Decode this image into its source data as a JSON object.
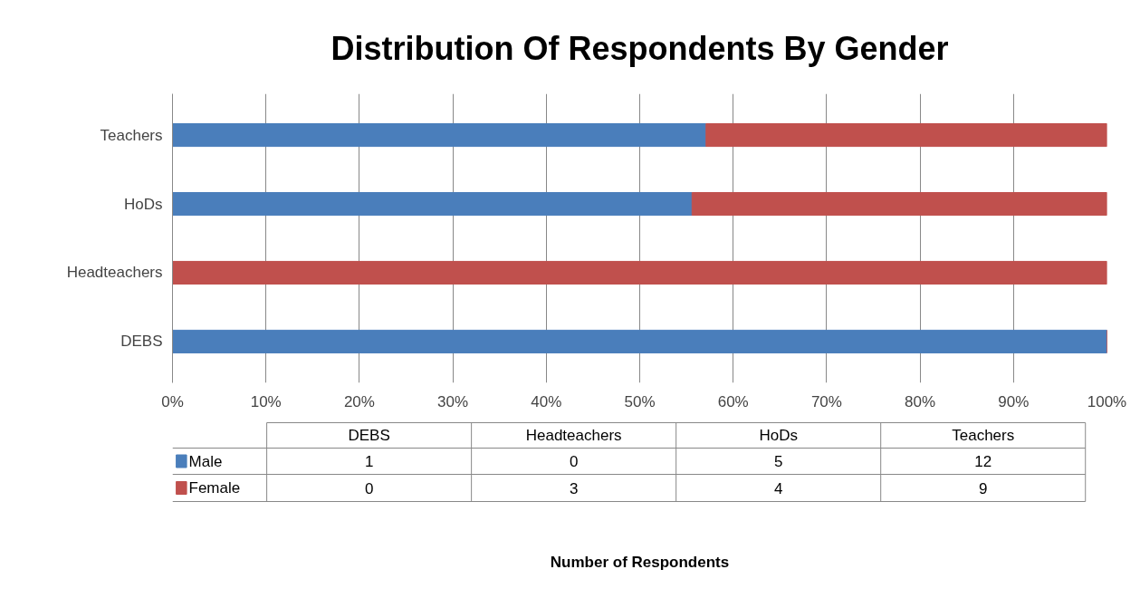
{
  "chart_data": {
    "type": "bar",
    "orientation": "horizontal",
    "stacked": true,
    "title": "Distribution Of Respondents By Gender",
    "categories": [
      "Teachers",
      "HoDs",
      "Headteachers",
      "DEBS"
    ],
    "series": [
      {
        "name": "Male",
        "color": "#4a7ebb",
        "values": [
          57.1,
          55.6,
          0,
          100
        ]
      },
      {
        "name": "Female",
        "color": "#c0504d",
        "values": [
          42.9,
          44.4,
          100,
          0
        ]
      }
    ],
    "annotations": [
      "Number of Respondents",
      "1",
      "0",
      "5",
      "12",
      "0",
      "3",
      "4",
      "9"
    ],
    "xlim": [
      0,
      100
    ],
    "xticks": [
      {
        "value": 0,
        "label": "0%"
      },
      {
        "value": 10,
        "label": "10%"
      },
      {
        "value": 20,
        "label": "20%"
      },
      {
        "value": 30,
        "label": "30%"
      },
      {
        "value": 40,
        "label": "40%"
      },
      {
        "value": 50,
        "label": "50%"
      },
      {
        "value": 60,
        "label": "60%"
      },
      {
        "value": 70,
        "label": "70%"
      },
      {
        "value": 80,
        "label": "80%"
      },
      {
        "value": 90,
        "label": "90%"
      },
      {
        "value": 100,
        "label": "100%"
      }
    ],
    "grid": "x",
    "legend": "bottom"
  }
}
